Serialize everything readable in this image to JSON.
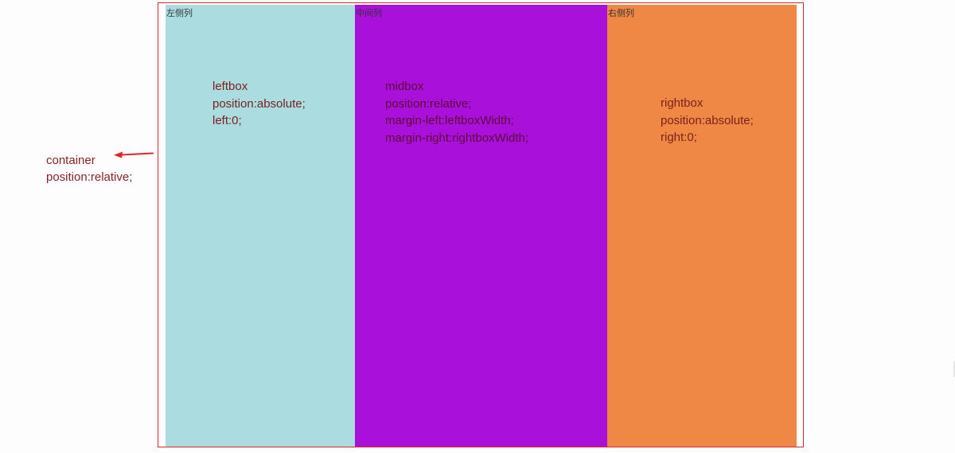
{
  "colors": {
    "left_column": "#abdce0",
    "middle_column": "#a911da",
    "right_column": "#ef8844",
    "container_border": "#e0262b",
    "annotation_text": "#8b2323",
    "arrow": "#e0262b"
  },
  "annotation": {
    "line1": "container",
    "line2": "position:relative;",
    "icon": "arrow-left-icon"
  },
  "columns": {
    "left": {
      "title": "左侧列",
      "lines": [
        "leftbox",
        "position:absolute;",
        "left:0;"
      ]
    },
    "middle": {
      "title": "中间列",
      "lines": [
        "midbox",
        "position:relative;",
        "margin-left:leftboxWidth;",
        "margin-right:rightboxWidth;"
      ]
    },
    "right": {
      "title": "右侧列",
      "lines": [
        "rightbox",
        "position:absolute;",
        "right:0;"
      ]
    }
  }
}
